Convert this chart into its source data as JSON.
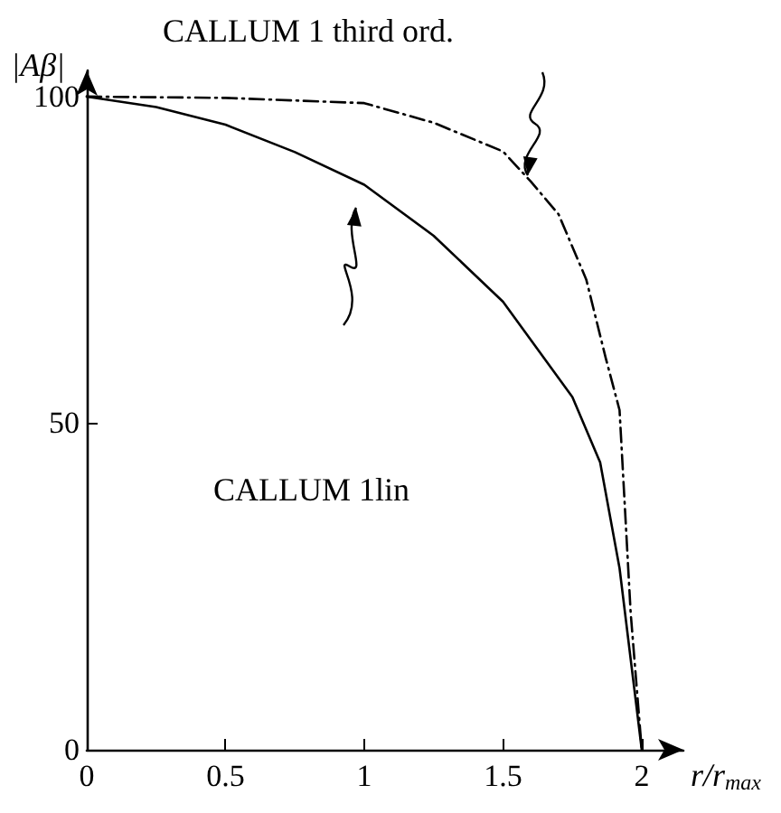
{
  "chart_data": {
    "type": "line",
    "xlabel": "r/r$_{max}$",
    "ylabel": "|Aβ|",
    "xlim": [
      0,
      2.15
    ],
    "xticks": [
      0,
      0.5,
      1,
      1.5,
      2
    ],
    "ylim": [
      0,
      104
    ],
    "yticks": [
      0,
      50,
      100
    ],
    "grid": false,
    "marker": "none",
    "series": [
      {
        "color": "#000000",
        "line_style": "solid",
        "x": [
          0,
          0.25,
          0.5,
          0.75,
          1,
          1.25,
          1.5,
          1.75,
          1.85,
          1.92,
          2
        ],
        "values": [
          100,
          98.4,
          95.7,
          91.5,
          86.5,
          78.7,
          68.6,
          54,
          44,
          27.8,
          0
        ]
      },
      {
        "color": "#000000",
        "line_style": "dashdot",
        "x": [
          0,
          0.5,
          1,
          1.25,
          1.5,
          1.6,
          1.7,
          1.8,
          1.87,
          1.92,
          1.96,
          2
        ],
        "values": [
          100,
          99.8,
          99,
          96,
          91.6,
          87,
          82,
          72,
          60,
          52,
          21,
          0
        ]
      }
    ],
    "annotations": [
      "CALLUM 1 third ord.",
      "CALLUM 1lin"
    ]
  }
}
